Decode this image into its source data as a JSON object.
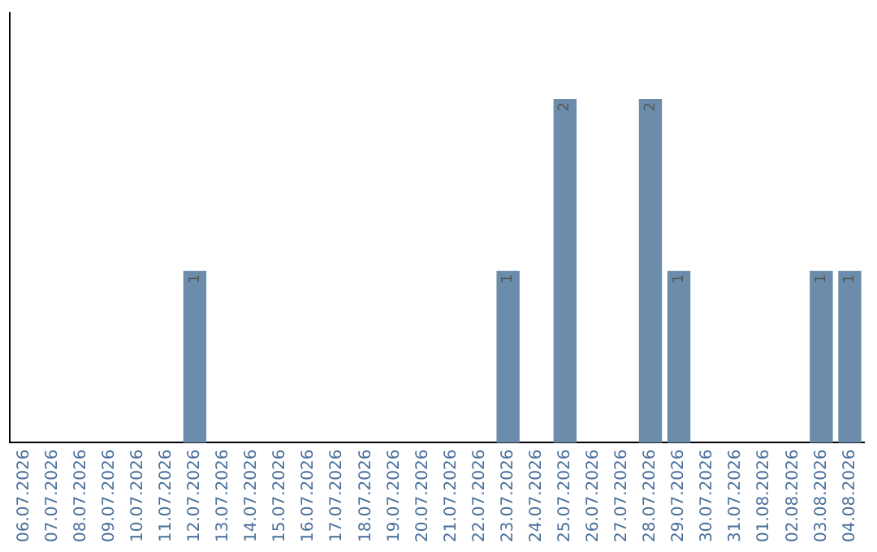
{
  "chart_data": {
    "type": "bar",
    "categories": [
      "06.07.2026",
      "07.07.2026",
      "08.07.2026",
      "09.07.2026",
      "10.07.2026",
      "11.07.2026",
      "12.07.2026",
      "13.07.2026",
      "14.07.2026",
      "15.07.2026",
      "16.07.2026",
      "17.07.2026",
      "18.07.2026",
      "19.07.2026",
      "20.07.2026",
      "21.07.2026",
      "22.07.2026",
      "23.07.2026",
      "24.07.2026",
      "25.07.2026",
      "26.07.2026",
      "27.07.2026",
      "28.07.2026",
      "29.07.2026",
      "30.07.2026",
      "31.07.2026",
      "01.08.2026",
      "02.08.2026",
      "03.08.2026",
      "04.08.2026"
    ],
    "values": [
      null,
      null,
      null,
      null,
      null,
      null,
      1,
      null,
      null,
      null,
      null,
      null,
      null,
      null,
      null,
      null,
      null,
      1,
      null,
      2,
      null,
      null,
      2,
      1,
      null,
      null,
      null,
      null,
      1,
      1
    ],
    "color": "#6b8cab",
    "data_labels": true,
    "tick_labels": "x",
    "grid": false,
    "legend": false
  }
}
